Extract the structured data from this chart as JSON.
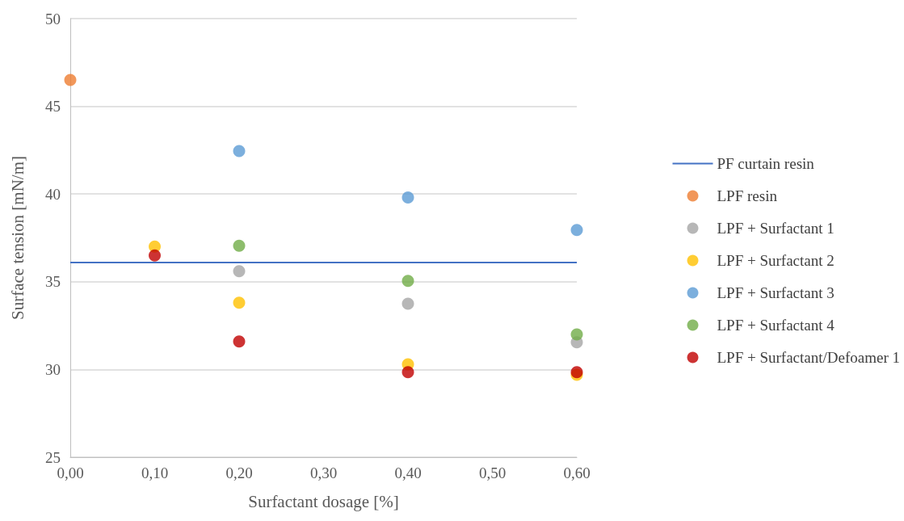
{
  "chart_data": {
    "type": "scatter",
    "xlabel": "Surfactant dosage [%]",
    "ylabel": "Surface tension [mN/m]",
    "xlim": [
      0,
      0.6
    ],
    "ylim": [
      25,
      50
    ],
    "xticks": [
      {
        "value": 0,
        "label": "0,00"
      },
      {
        "value": 0.1,
        "label": "0,10"
      },
      {
        "value": 0.2,
        "label": "0,20"
      },
      {
        "value": 0.3,
        "label": "0,30"
      },
      {
        "value": 0.4,
        "label": "0,40"
      },
      {
        "value": 0.5,
        "label": "0,50"
      },
      {
        "value": 0.6,
        "label": "0,60"
      }
    ],
    "yticks": [
      25,
      30,
      35,
      40,
      45,
      50
    ],
    "grid": "y",
    "legend": "right",
    "marker": "circle",
    "series": [
      {
        "name": "PF curtain resin",
        "type": "line",
        "marker": "none",
        "color": "#4472c4",
        "x": [
          0,
          0.6
        ],
        "values": [
          36.1,
          36.1
        ]
      },
      {
        "name": "LPF resin",
        "color": "#ed7d31",
        "x": [
          0
        ],
        "values": [
          46.5
        ]
      },
      {
        "name": "LPF + Surfactant 1",
        "color": "#a5a5a5",
        "x": [
          0.2,
          0.4,
          0.6
        ],
        "values": [
          35.6,
          33.75,
          31.55
        ]
      },
      {
        "name": "LPF + Surfactant 2",
        "color": "#ffc000",
        "x": [
          0.1,
          0.2,
          0.4,
          0.6
        ],
        "values": [
          37.0,
          33.8,
          30.3,
          29.7
        ]
      },
      {
        "name": "LPF + Surfactant 3",
        "color": "#5b9bd5",
        "x": [
          0.2,
          0.4,
          0.6
        ],
        "values": [
          42.45,
          39.8,
          37.95
        ]
      },
      {
        "name": "LPF + Surfactant 4",
        "color": "#70ad47",
        "x": [
          0.2,
          0.4,
          0.6
        ],
        "values": [
          37.05,
          35.05,
          32.0
        ]
      },
      {
        "name": "LPF + Surfactant/Defoamer 1",
        "color": "#c00000",
        "x": [
          0.1,
          0.2,
          0.4,
          0.6
        ],
        "values": [
          36.5,
          31.6,
          29.85,
          29.85
        ]
      }
    ]
  }
}
